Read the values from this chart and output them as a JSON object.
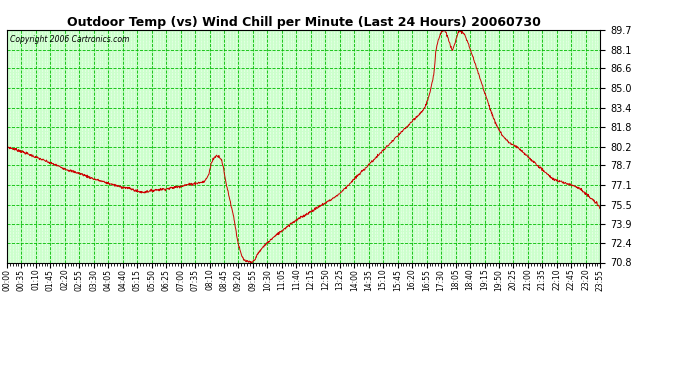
{
  "title": "Outdoor Temp (vs) Wind Chill per Minute (Last 24 Hours) 20060730",
  "copyright_text": "Copyright 2006 Cartronics.com",
  "background_color": "#ffffff",
  "plot_bg_color": "#ccffcc",
  "grid_major_color": "#00bb00",
  "grid_minor_color": "#ffffff",
  "line_color": "#cc0000",
  "ylim": [
    70.8,
    89.7
  ],
  "yticks": [
    70.8,
    72.4,
    73.9,
    75.5,
    77.1,
    78.7,
    80.2,
    81.8,
    83.4,
    85.0,
    86.6,
    88.1,
    89.7
  ],
  "xtick_labels": [
    "00:00",
    "00:35",
    "01:10",
    "01:45",
    "02:20",
    "02:55",
    "03:30",
    "04:05",
    "04:40",
    "05:15",
    "05:50",
    "06:25",
    "07:00",
    "07:35",
    "08:10",
    "08:45",
    "09:20",
    "09:55",
    "10:30",
    "11:05",
    "11:40",
    "12:15",
    "12:50",
    "13:25",
    "14:00",
    "14:35",
    "15:10",
    "15:45",
    "16:20",
    "16:55",
    "17:30",
    "18:05",
    "18:40",
    "19:15",
    "19:50",
    "20:25",
    "21:00",
    "21:35",
    "22:10",
    "22:45",
    "23:20",
    "23:55"
  ],
  "control_t": [
    0,
    30,
    60,
    90,
    120,
    150,
    180,
    210,
    240,
    270,
    300,
    315,
    330,
    360,
    390,
    420,
    450,
    470,
    480,
    490,
    495,
    500,
    505,
    510,
    515,
    520,
    525,
    530,
    540,
    550,
    555,
    560,
    565,
    570,
    575,
    580,
    585,
    590,
    595,
    600,
    605,
    615,
    625,
    635,
    645,
    660,
    675,
    690,
    705,
    720,
    735,
    750,
    765,
    780,
    795,
    810,
    825,
    840,
    855,
    870,
    885,
    900,
    915,
    930,
    945,
    960,
    975,
    990,
    1005,
    1015,
    1020,
    1025,
    1030,
    1035,
    1038,
    1040,
    1045,
    1050,
    1055,
    1060,
    1065,
    1070,
    1075,
    1080,
    1085,
    1090,
    1095,
    1100,
    1110,
    1120,
    1130,
    1140,
    1150,
    1160,
    1170,
    1180,
    1190,
    1200,
    1210,
    1220,
    1230,
    1240,
    1250,
    1260,
    1270,
    1280,
    1290,
    1300,
    1310,
    1320,
    1330,
    1340,
    1350,
    1360,
    1370,
    1380,
    1390,
    1400,
    1410,
    1420,
    1430,
    1439
  ],
  "control_y": [
    80.2,
    79.9,
    79.5,
    79.1,
    78.7,
    78.3,
    78.0,
    77.6,
    77.3,
    77.0,
    76.8,
    76.6,
    76.5,
    76.7,
    76.8,
    77.0,
    77.2,
    77.3,
    77.4,
    78.0,
    78.8,
    79.2,
    79.4,
    79.5,
    79.4,
    79.2,
    78.5,
    77.5,
    76.0,
    74.5,
    73.5,
    72.5,
    71.8,
    71.3,
    71.0,
    70.9,
    70.85,
    70.82,
    70.8,
    71.0,
    71.3,
    71.8,
    72.2,
    72.5,
    72.8,
    73.2,
    73.6,
    74.0,
    74.3,
    74.6,
    74.9,
    75.2,
    75.5,
    75.8,
    76.1,
    76.5,
    77.0,
    77.5,
    78.0,
    78.5,
    79.0,
    79.5,
    80.0,
    80.5,
    81.0,
    81.5,
    82.0,
    82.5,
    83.0,
    83.5,
    84.0,
    84.5,
    85.2,
    86.0,
    87.0,
    88.0,
    88.8,
    89.3,
    89.6,
    89.7,
    89.5,
    89.0,
    88.5,
    88.1,
    88.5,
    89.0,
    89.5,
    89.7,
    89.3,
    88.5,
    87.5,
    86.5,
    85.5,
    84.5,
    83.5,
    82.5,
    81.8,
    81.2,
    80.8,
    80.5,
    80.3,
    80.1,
    79.8,
    79.5,
    79.2,
    78.9,
    78.6,
    78.3,
    78.0,
    77.7,
    77.5,
    77.4,
    77.3,
    77.2,
    77.1,
    77.0,
    76.8,
    76.5,
    76.2,
    75.9,
    75.6,
    75.2
  ]
}
